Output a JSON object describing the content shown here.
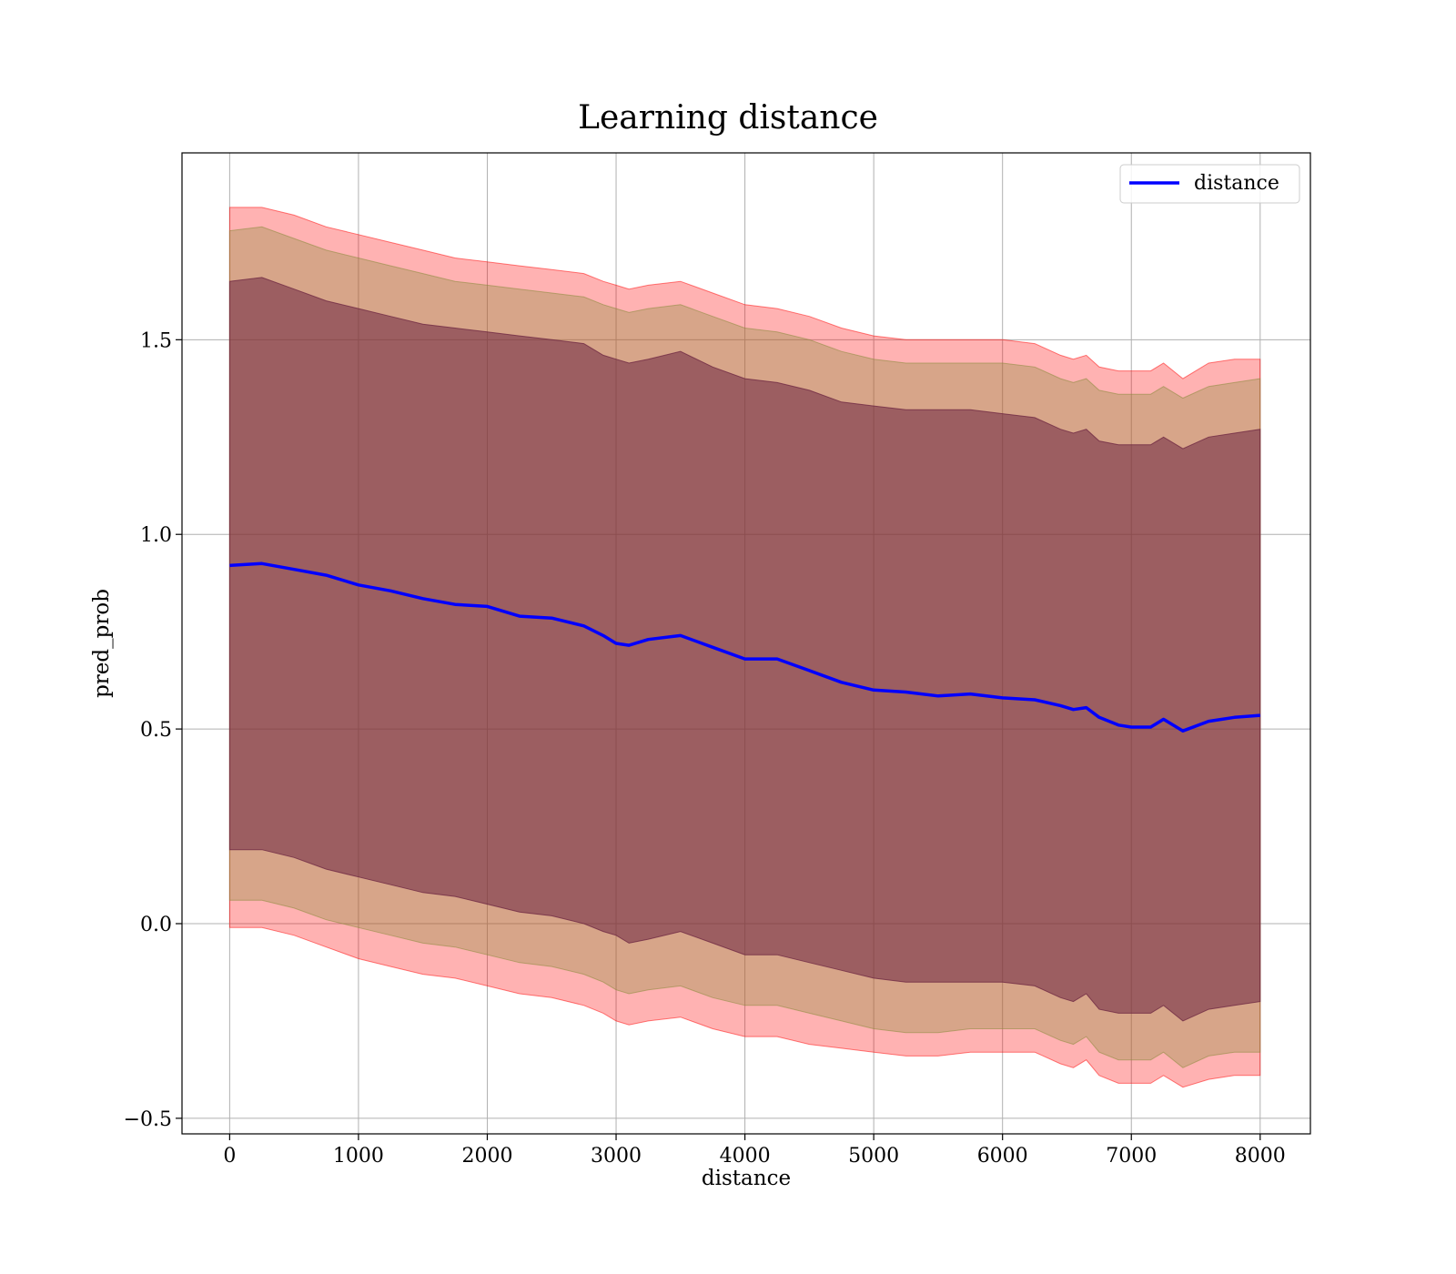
{
  "chart_data": {
    "type": "line",
    "title": "Learning distance",
    "xlabel": "distance",
    "ylabel": "pred_prob",
    "xlim": [
      -370,
      8390
    ],
    "ylim": [
      -0.54,
      1.98
    ],
    "xticks": [
      0,
      1000,
      2000,
      3000,
      4000,
      5000,
      6000,
      7000,
      8000
    ],
    "xtick_labels": [
      "0",
      "1000",
      "2000",
      "3000",
      "4000",
      "5000",
      "6000",
      "7000",
      "8000"
    ],
    "yticks": [
      -0.5,
      0.0,
      0.5,
      1.0,
      1.5
    ],
    "ytick_labels": [
      "−0.5",
      "0.0",
      "0.5",
      "1.0",
      "1.5"
    ],
    "grid": true,
    "legend": {
      "position": "upper-right",
      "entries": [
        "distance"
      ]
    },
    "x": [
      0,
      250,
      500,
      750,
      1000,
      1250,
      1500,
      1750,
      2000,
      2250,
      2500,
      2750,
      2900,
      3000,
      3100,
      3250,
      3500,
      3750,
      4000,
      4250,
      4500,
      4750,
      5000,
      5250,
      5500,
      5750,
      6000,
      6250,
      6450,
      6550,
      6650,
      6750,
      6900,
      7000,
      7150,
      7250,
      7400,
      7600,
      7800,
      8000
    ],
    "series": [
      {
        "name": "distance",
        "color": "#0000ff",
        "values": [
          0.92,
          0.925,
          0.91,
          0.895,
          0.87,
          0.855,
          0.835,
          0.82,
          0.815,
          0.79,
          0.785,
          0.765,
          0.74,
          0.72,
          0.715,
          0.73,
          0.74,
          0.71,
          0.68,
          0.68,
          0.65,
          0.62,
          0.6,
          0.595,
          0.585,
          0.59,
          0.58,
          0.575,
          0.56,
          0.55,
          0.555,
          0.53,
          0.51,
          0.505,
          0.505,
          0.525,
          0.495,
          0.52,
          0.53,
          0.535
        ]
      }
    ],
    "bands": [
      {
        "color": "#ff0000",
        "opacity": 0.3,
        "upper": [
          1.84,
          1.84,
          1.82,
          1.79,
          1.77,
          1.75,
          1.73,
          1.71,
          1.7,
          1.69,
          1.68,
          1.67,
          1.65,
          1.64,
          1.63,
          1.64,
          1.65,
          1.62,
          1.59,
          1.58,
          1.56,
          1.53,
          1.51,
          1.5,
          1.5,
          1.5,
          1.5,
          1.49,
          1.46,
          1.45,
          1.46,
          1.43,
          1.42,
          1.42,
          1.42,
          1.44,
          1.4,
          1.44,
          1.45,
          1.45
        ],
        "lower": [
          -0.01,
          -0.01,
          -0.03,
          -0.06,
          -0.09,
          -0.11,
          -0.13,
          -0.14,
          -0.16,
          -0.18,
          -0.19,
          -0.21,
          -0.23,
          -0.25,
          -0.26,
          -0.25,
          -0.24,
          -0.27,
          -0.29,
          -0.29,
          -0.31,
          -0.32,
          -0.33,
          -0.34,
          -0.34,
          -0.33,
          -0.33,
          -0.33,
          -0.36,
          -0.37,
          -0.35,
          -0.39,
          -0.41,
          -0.41,
          -0.41,
          -0.39,
          -0.42,
          -0.4,
          -0.39,
          -0.39
        ]
      },
      {
        "color": "#8b8b3c",
        "opacity": 0.35,
        "upper": [
          1.78,
          1.79,
          1.76,
          1.73,
          1.71,
          1.69,
          1.67,
          1.65,
          1.64,
          1.63,
          1.62,
          1.61,
          1.59,
          1.58,
          1.57,
          1.58,
          1.59,
          1.56,
          1.53,
          1.52,
          1.5,
          1.47,
          1.45,
          1.44,
          1.44,
          1.44,
          1.44,
          1.43,
          1.4,
          1.39,
          1.4,
          1.37,
          1.36,
          1.36,
          1.36,
          1.38,
          1.35,
          1.38,
          1.39,
          1.4
        ],
        "lower": [
          0.06,
          0.06,
          0.04,
          0.01,
          -0.01,
          -0.03,
          -0.05,
          -0.06,
          -0.08,
          -0.1,
          -0.11,
          -0.13,
          -0.15,
          -0.17,
          -0.18,
          -0.17,
          -0.16,
          -0.19,
          -0.21,
          -0.21,
          -0.23,
          -0.25,
          -0.27,
          -0.28,
          -0.28,
          -0.27,
          -0.27,
          -0.27,
          -0.3,
          -0.31,
          -0.29,
          -0.33,
          -0.35,
          -0.35,
          -0.35,
          -0.33,
          -0.37,
          -0.34,
          -0.33,
          -0.33
        ]
      },
      {
        "color": "#6b2440",
        "opacity": 0.55,
        "upper": [
          1.65,
          1.66,
          1.63,
          1.6,
          1.58,
          1.56,
          1.54,
          1.53,
          1.52,
          1.51,
          1.5,
          1.49,
          1.46,
          1.45,
          1.44,
          1.45,
          1.47,
          1.43,
          1.4,
          1.39,
          1.37,
          1.34,
          1.33,
          1.32,
          1.32,
          1.32,
          1.31,
          1.3,
          1.27,
          1.26,
          1.27,
          1.24,
          1.23,
          1.23,
          1.23,
          1.25,
          1.22,
          1.25,
          1.26,
          1.27
        ],
        "lower": [
          0.19,
          0.19,
          0.17,
          0.14,
          0.12,
          0.1,
          0.08,
          0.07,
          0.05,
          0.03,
          0.02,
          0.0,
          -0.02,
          -0.03,
          -0.05,
          -0.04,
          -0.02,
          -0.05,
          -0.08,
          -0.08,
          -0.1,
          -0.12,
          -0.14,
          -0.15,
          -0.15,
          -0.15,
          -0.15,
          -0.16,
          -0.19,
          -0.2,
          -0.18,
          -0.22,
          -0.23,
          -0.23,
          -0.23,
          -0.21,
          -0.25,
          -0.22,
          -0.21,
          -0.2
        ]
      }
    ]
  }
}
